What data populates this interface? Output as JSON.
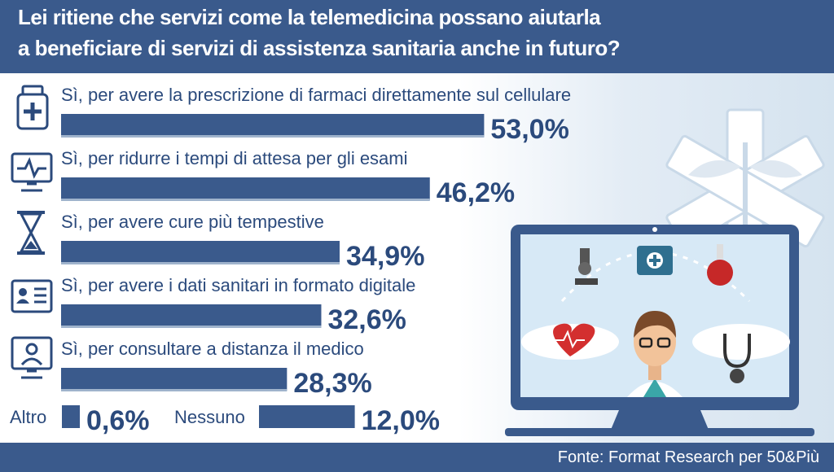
{
  "title": {
    "line1": "Lei ritiene che servizi come la telemedicina possano aiutarla",
    "line2": "a beneficiare di servizi di assistenza sanitaria anche in futuro?"
  },
  "source": "Fonte: Format Research per 50&Più",
  "colors": {
    "bar": "#3a5a8c",
    "text": "#2b4a7c",
    "header": "#3a5a8c"
  },
  "icons": [
    "medicine-bottle-icon",
    "monitor-heartbeat-icon",
    "hourglass-icon",
    "id-card-icon",
    "monitor-doctor-icon"
  ],
  "chart_data": {
    "type": "bar",
    "orientation": "horizontal",
    "title": "Lei ritiene che servizi come la telemedicina possano aiutarla a beneficiare di servizi di assistenza sanitaria anche in futuro?",
    "categories": [
      "Sì, per avere la prescrizione di farmaci direttamente sul cellulare",
      "Sì, per ridurre i tempi di attesa per gli esami",
      "Sì, per avere cure più tempestive",
      "Sì, per avere i dati sanitari in formato digitale",
      "Sì, per consultare a distanza il medico"
    ],
    "values": [
      53.0,
      46.2,
      34.9,
      32.6,
      28.3
    ],
    "value_labels": [
      "53,0%",
      "46,2%",
      "34,9%",
      "32,6%",
      "28,3%"
    ],
    "extra": [
      {
        "category": "Altro",
        "value": 0.6,
        "value_label": "0,6%"
      },
      {
        "category": "Nessuno",
        "value": 12.0,
        "value_label": "12,0%"
      }
    ],
    "unit": "%"
  }
}
